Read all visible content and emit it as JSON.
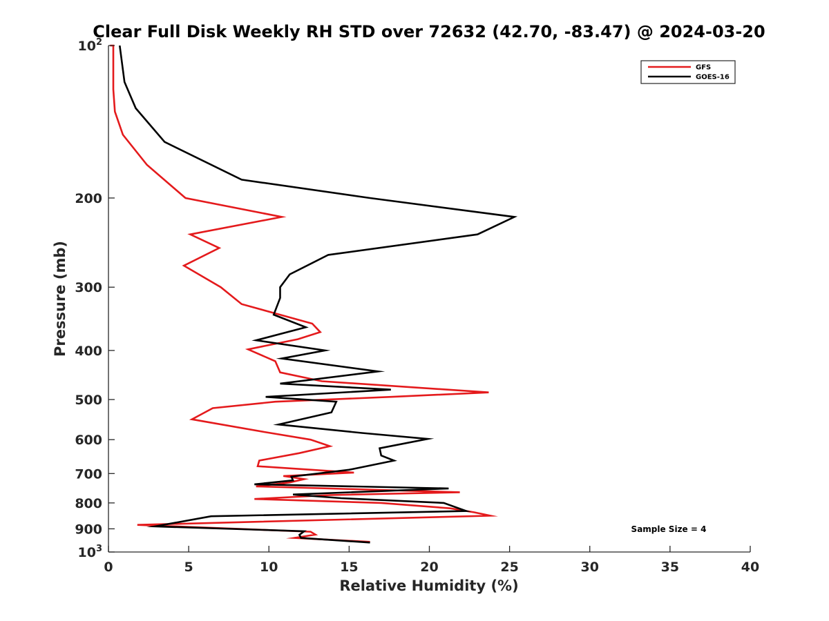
{
  "chart_data": {
    "type": "line",
    "title": "Clear Full Disk Weekly RH STD over 72632 (42.70, -83.47) @ 2024-03-20",
    "xlabel": "Relative Humidity (%)",
    "ylabel": "Pressure (mb)",
    "xlim": [
      0,
      40
    ],
    "ylim": [
      100,
      1000
    ],
    "y_scale": "log",
    "y_reversed": true,
    "x_ticks": [
      "0",
      "5",
      "10",
      "15",
      "20",
      "25",
      "30",
      "35",
      "40"
    ],
    "y_ticks": [
      {
        "value": 100,
        "base": "10",
        "exp": "2"
      },
      {
        "value": 200,
        "label": "200"
      },
      {
        "value": 300,
        "label": "300"
      },
      {
        "value": 400,
        "label": "400"
      },
      {
        "value": 500,
        "label": "500"
      },
      {
        "value": 600,
        "label": "600"
      },
      {
        "value": 700,
        "label": "700"
      },
      {
        "value": 800,
        "label": "800"
      },
      {
        "value": 900,
        "label": "900"
      },
      {
        "value": 1000,
        "base": "10",
        "exp": "3"
      }
    ],
    "grid": false,
    "legend_position": "top-right",
    "annotation": "Sample Size = 4",
    "series": [
      {
        "name": "GFS",
        "color": "#e41a1c",
        "points": [
          [
            0.1,
            100
          ],
          [
            0.3,
            100
          ],
          [
            0.3,
            122
          ],
          [
            0.4,
            135
          ],
          [
            0.9,
            150
          ],
          [
            2.4,
            172
          ],
          [
            4.8,
            200
          ],
          [
            10.8,
            218
          ],
          [
            5.1,
            236
          ],
          [
            6.9,
            251
          ],
          [
            4.7,
            272
          ],
          [
            7.0,
            300
          ],
          [
            8.3,
            324
          ],
          [
            12.7,
            354
          ],
          [
            13.2,
            368
          ],
          [
            11.8,
            380
          ],
          [
            8.7,
            398
          ],
          [
            10.4,
            420
          ],
          [
            10.7,
            442
          ],
          [
            13.3,
            460
          ],
          [
            23.7,
            484
          ],
          [
            17.6,
            494
          ],
          [
            10.4,
            505
          ],
          [
            6.5,
            520
          ],
          [
            5.2,
            547
          ],
          [
            9.8,
            580
          ],
          [
            12.6,
            600
          ],
          [
            13.8,
            618
          ],
          [
            11.9,
            638
          ],
          [
            9.4,
            660
          ],
          [
            9.3,
            677
          ],
          [
            15.3,
            697
          ],
          [
            10.9,
            708
          ],
          [
            12.2,
            718
          ],
          [
            11.3,
            729
          ],
          [
            9.2,
            742
          ],
          [
            21.9,
            762
          ],
          [
            13.8,
            772
          ],
          [
            9.1,
            786
          ],
          [
            17.0,
            800
          ],
          [
            21.3,
            820
          ],
          [
            22.8,
            835
          ],
          [
            23.8,
            848
          ],
          [
            1.8,
            884
          ],
          [
            12.6,
            912
          ],
          [
            12.9,
            924
          ],
          [
            11.6,
            938
          ],
          [
            16.3,
            955
          ]
        ]
      },
      {
        "name": "GOES-16",
        "color": "#000000",
        "points": [
          [
            0.7,
            100
          ],
          [
            1.0,
            118
          ],
          [
            1.7,
            133
          ],
          [
            3.5,
            155
          ],
          [
            8.3,
            184
          ],
          [
            16.3,
            200
          ],
          [
            25.3,
            218
          ],
          [
            23.0,
            236
          ],
          [
            13.7,
            259
          ],
          [
            11.3,
            283
          ],
          [
            10.7,
            300
          ],
          [
            10.7,
            315
          ],
          [
            10.3,
            340
          ],
          [
            12.3,
            360
          ],
          [
            9.2,
            382
          ],
          [
            13.5,
            400
          ],
          [
            10.8,
            415
          ],
          [
            16.8,
            440
          ],
          [
            10.7,
            465
          ],
          [
            17.6,
            478
          ],
          [
            9.8,
            494
          ],
          [
            14.2,
            505
          ],
          [
            13.9,
            530
          ],
          [
            10.6,
            560
          ],
          [
            15.8,
            582
          ],
          [
            19.9,
            598
          ],
          [
            16.9,
            624
          ],
          [
            17.0,
            645
          ],
          [
            17.8,
            660
          ],
          [
            15.0,
            688
          ],
          [
            11.4,
            710
          ],
          [
            11.5,
            722
          ],
          [
            9.1,
            735
          ],
          [
            21.2,
            749
          ],
          [
            11.5,
            770
          ],
          [
            14.5,
            783
          ],
          [
            20.9,
            800
          ],
          [
            22.3,
            830
          ],
          [
            6.4,
            850
          ],
          [
            2.9,
            890
          ],
          [
            12.2,
            910
          ],
          [
            11.9,
            925
          ],
          [
            12.0,
            938
          ],
          [
            16.3,
            958
          ]
        ]
      }
    ]
  }
}
